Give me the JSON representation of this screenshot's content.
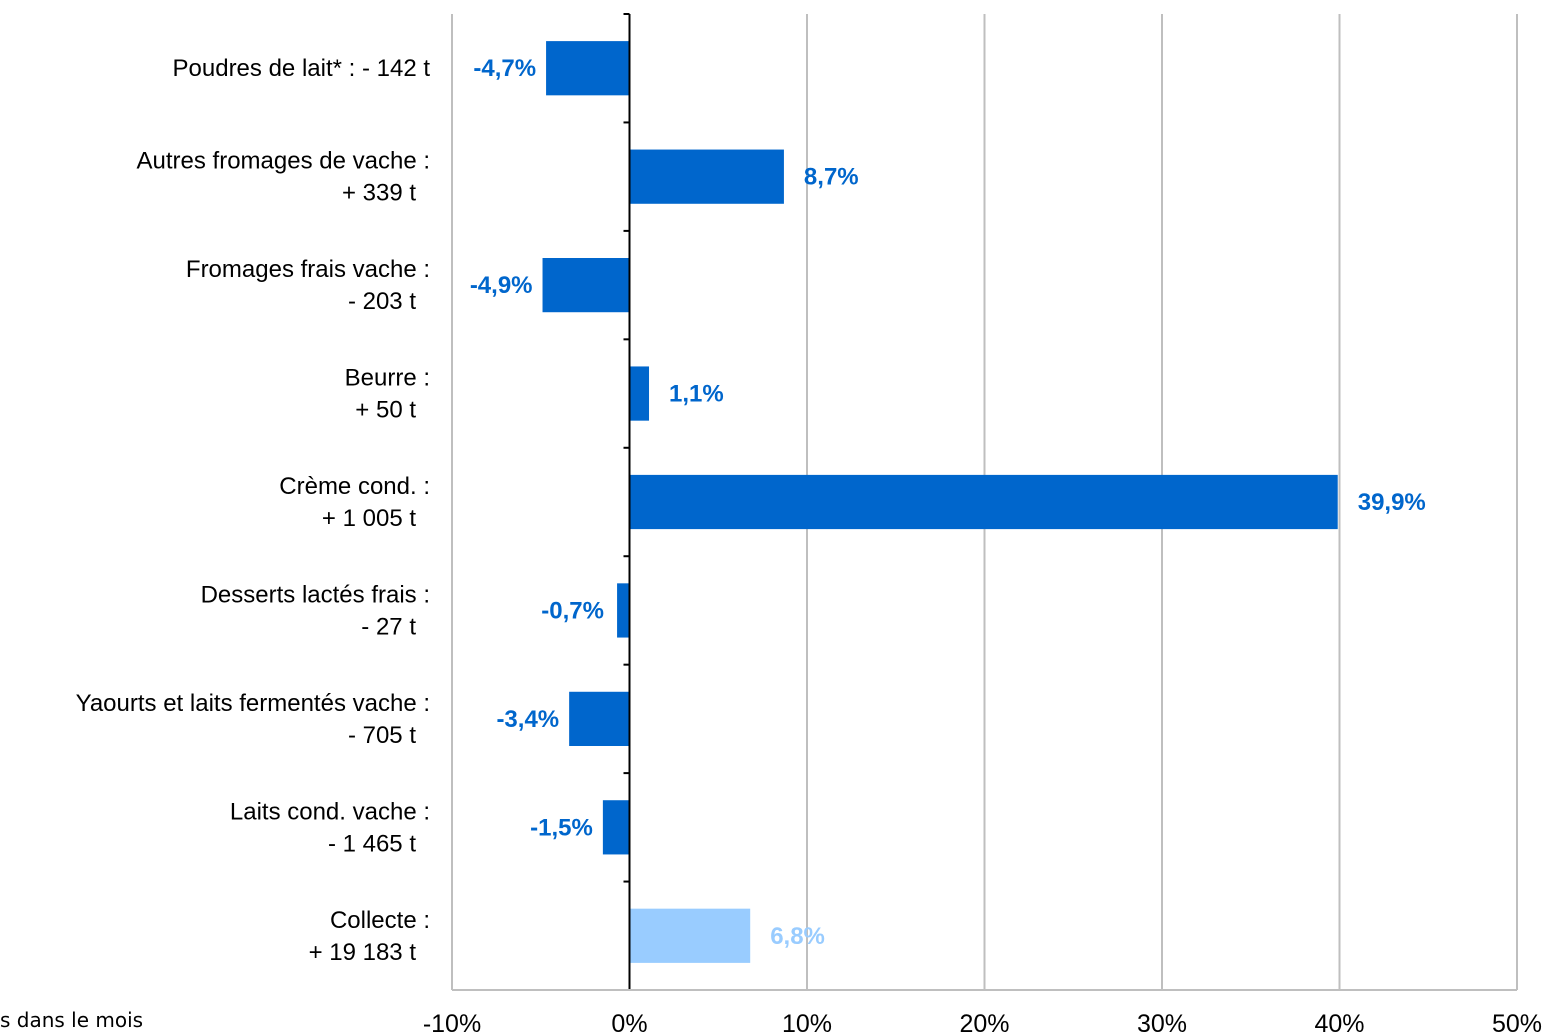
{
  "chart_data": {
    "type": "bar",
    "orientation": "horizontal",
    "categories": [
      [
        "Poudres de lait* :    - 142 t"
      ],
      [
        "Autres fromages de vache :",
        "+ 339 t"
      ],
      [
        "Fromages frais vache :",
        "- 203 t"
      ],
      [
        "Beurre :",
        "+ 50 t"
      ],
      [
        "Crème cond. :",
        "+ 1 005 t"
      ],
      [
        "Desserts lactés frais :",
        "- 27 t"
      ],
      [
        "Yaourts et laits fermentés vache :",
        "- 705 t"
      ],
      [
        "Laits cond. vache :",
        "- 1 465 t"
      ],
      [
        "Collecte :",
        "+ 19 183 t"
      ]
    ],
    "values": [
      -4.7,
      8.7,
      -4.9,
      1.1,
      39.9,
      -0.7,
      -3.4,
      -1.5,
      6.8
    ],
    "value_labels": [
      "-4,7%",
      "8,7%",
      "-4,9%",
      "1,1%",
      "39,9%",
      "-0,7%",
      "-3,4%",
      "-1,5%",
      "6,8%"
    ],
    "colors": [
      "#0066CC",
      "#0066CC",
      "#0066CC",
      "#0066CC",
      "#0066CC",
      "#0066CC",
      "#0066CC",
      "#0066CC",
      "#99CCFF"
    ],
    "xlim": [
      -10,
      50
    ],
    "xticks": [
      -10,
      0,
      10,
      20,
      30,
      40,
      50
    ],
    "xtick_labels": [
      "-10%",
      "0%",
      "10%",
      "20%",
      "30%",
      "40%",
      "50%"
    ],
    "grid": "vertical",
    "title": "",
    "xlabel": "",
    "ylabel": ""
  },
  "footnote": "s dans le mois"
}
